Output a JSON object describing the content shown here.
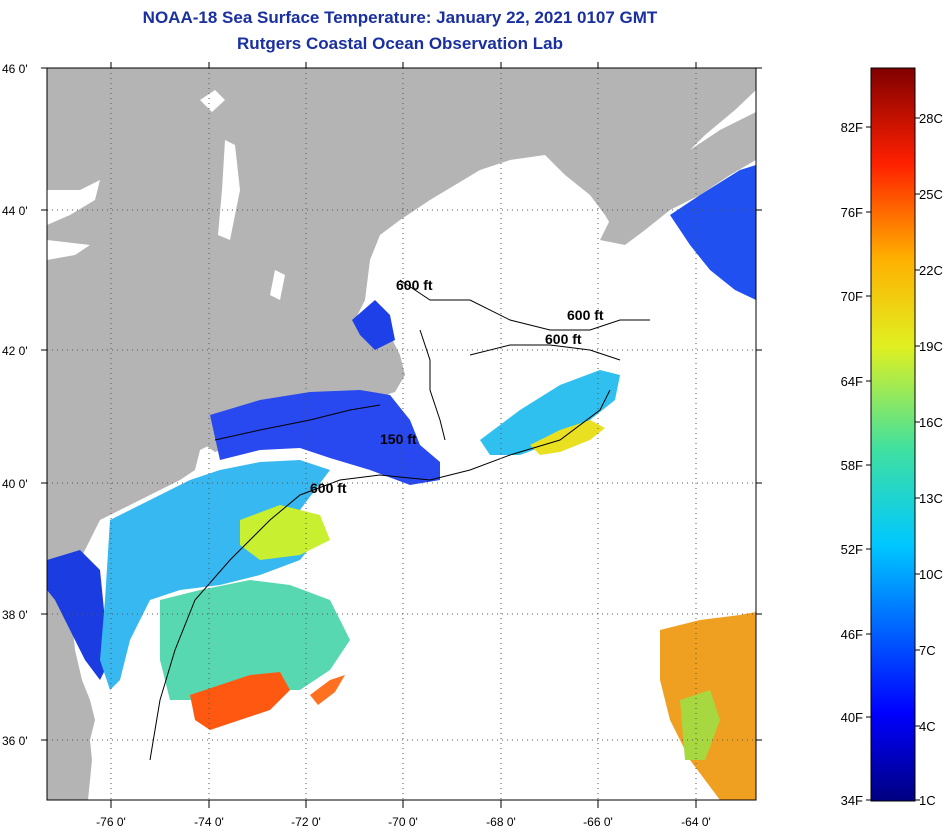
{
  "title": "NOAA-18 Sea Surface Temperature:  January 22, 2021 0107 GMT",
  "subtitle": "Rutgers Coastal Ocean Observation Lab",
  "lat_ticks": [
    "46 0'",
    "44 0'",
    "42 0'",
    "40 0'",
    "38 0'",
    "36 0'"
  ],
  "lon_ticks": [
    "-76 0'",
    "-74 0'",
    "-72 0'",
    "-70 0'",
    "-68 0'",
    "-66 0'",
    "-64 0'"
  ],
  "isobath_labels": [
    "600 ft",
    "600 ft",
    "600 ft",
    "150 ft",
    "600 ft"
  ],
  "colorbar": {
    "fahrenheit": [
      "82F",
      "76F",
      "70F",
      "64F",
      "58F",
      "52F",
      "46F",
      "40F",
      "34F"
    ],
    "celsius": [
      "28C",
      "25C",
      "22C",
      "19C",
      "16C",
      "13C",
      "10C",
      "7C",
      "4C",
      "1C"
    ]
  },
  "colors": {
    "title": "#1a2fa0",
    "land": "#b4b4b4",
    "cloud": "#ffffff",
    "cold_water": "#1e3cf0",
    "warm_water": "#ff5010"
  }
}
